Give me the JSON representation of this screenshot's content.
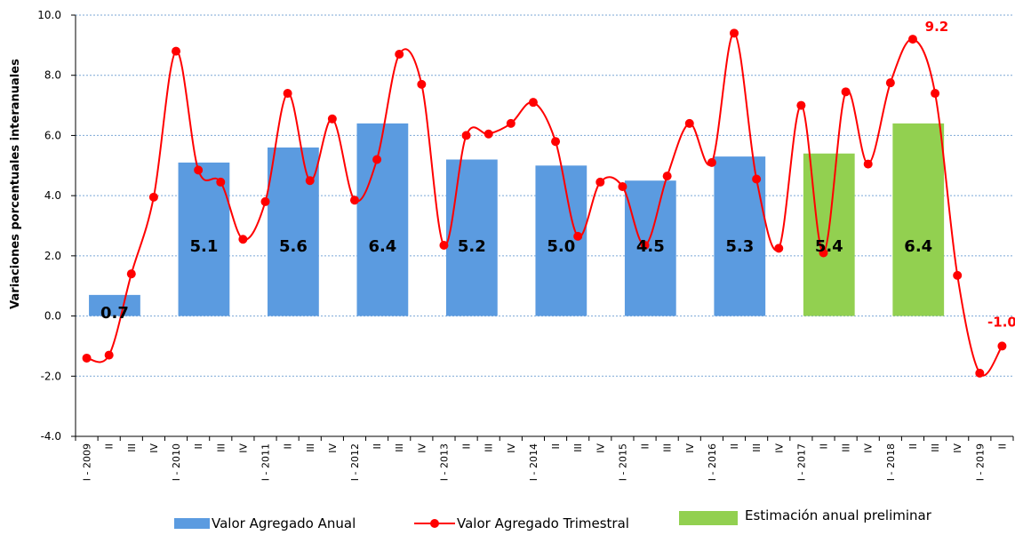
{
  "chart_data": {
    "type": "bar",
    "ylabel": "Variaciones porcentuales interanuales",
    "ylim": [
      -4.0,
      10.0
    ],
    "yticks": [
      "10.0",
      "8.0",
      "6.0",
      "4.0",
      "2.0",
      "0.0",
      "-2.0",
      "-4.0"
    ],
    "categories": [
      "I - 2009",
      "II",
      "III",
      "IV",
      "I - 2010",
      "II",
      "III",
      "IV",
      "I - 2011",
      "II",
      "III",
      "IV",
      "I - 2012",
      "II",
      "III",
      "IV",
      "I - 2013",
      "II",
      "III",
      "IV",
      "I - 2014",
      "II",
      "III",
      "IV",
      "I - 2015",
      "II",
      "III",
      "IV",
      "I - 2016",
      "II",
      "III",
      "IV",
      "I - 2017",
      "II",
      "III",
      "IV",
      "I - 2018",
      "II",
      "III",
      "IV",
      "I - 2019",
      "II"
    ],
    "series": [
      {
        "name": "Valor Agregado Anual",
        "type": "bar",
        "color": "#5b9be0",
        "bars": [
          {
            "year": "2009",
            "value": 0.7,
            "label": "0.7"
          },
          {
            "year": "2010",
            "value": 5.1,
            "label": "5.1"
          },
          {
            "year": "2011",
            "value": 5.6,
            "label": "5.6"
          },
          {
            "year": "2012",
            "value": 6.4,
            "label": "6.4"
          },
          {
            "year": "2013",
            "value": 5.2,
            "label": "5.2"
          },
          {
            "year": "2014",
            "value": 5.0,
            "label": "5.0"
          },
          {
            "year": "2015",
            "value": 4.5,
            "label": "4.5"
          },
          {
            "year": "2016",
            "value": 5.3,
            "label": "5.3"
          }
        ]
      },
      {
        "name": "Estimación anual preliminar",
        "type": "bar",
        "color": "#92d050",
        "bars": [
          {
            "year": "2017",
            "value": 5.4,
            "label": "5.4"
          },
          {
            "year": "2018",
            "value": 6.4,
            "label": "6.4"
          }
        ]
      },
      {
        "name": "Valor Agregado Trimestral",
        "type": "line",
        "color": "#ff0000",
        "values": [
          -1.4,
          -1.3,
          1.4,
          3.95,
          8.8,
          4.85,
          4.45,
          2.55,
          3.8,
          7.4,
          4.5,
          6.55,
          3.85,
          5.2,
          8.7,
          7.7,
          2.35,
          6.0,
          6.05,
          6.4,
          7.1,
          5.8,
          2.65,
          4.45,
          4.3,
          2.35,
          4.65,
          6.4,
          5.1,
          9.4,
          4.55,
          2.25,
          7.0,
          2.1,
          7.45,
          5.05,
          7.75,
          9.2,
          7.4,
          1.35,
          -1.9,
          -1.0
        ],
        "annotations": [
          {
            "index": 37,
            "label": "9.2"
          },
          {
            "index": 41,
            "label": "-1.0"
          }
        ]
      }
    ],
    "grid": true,
    "legend": "bottom"
  }
}
